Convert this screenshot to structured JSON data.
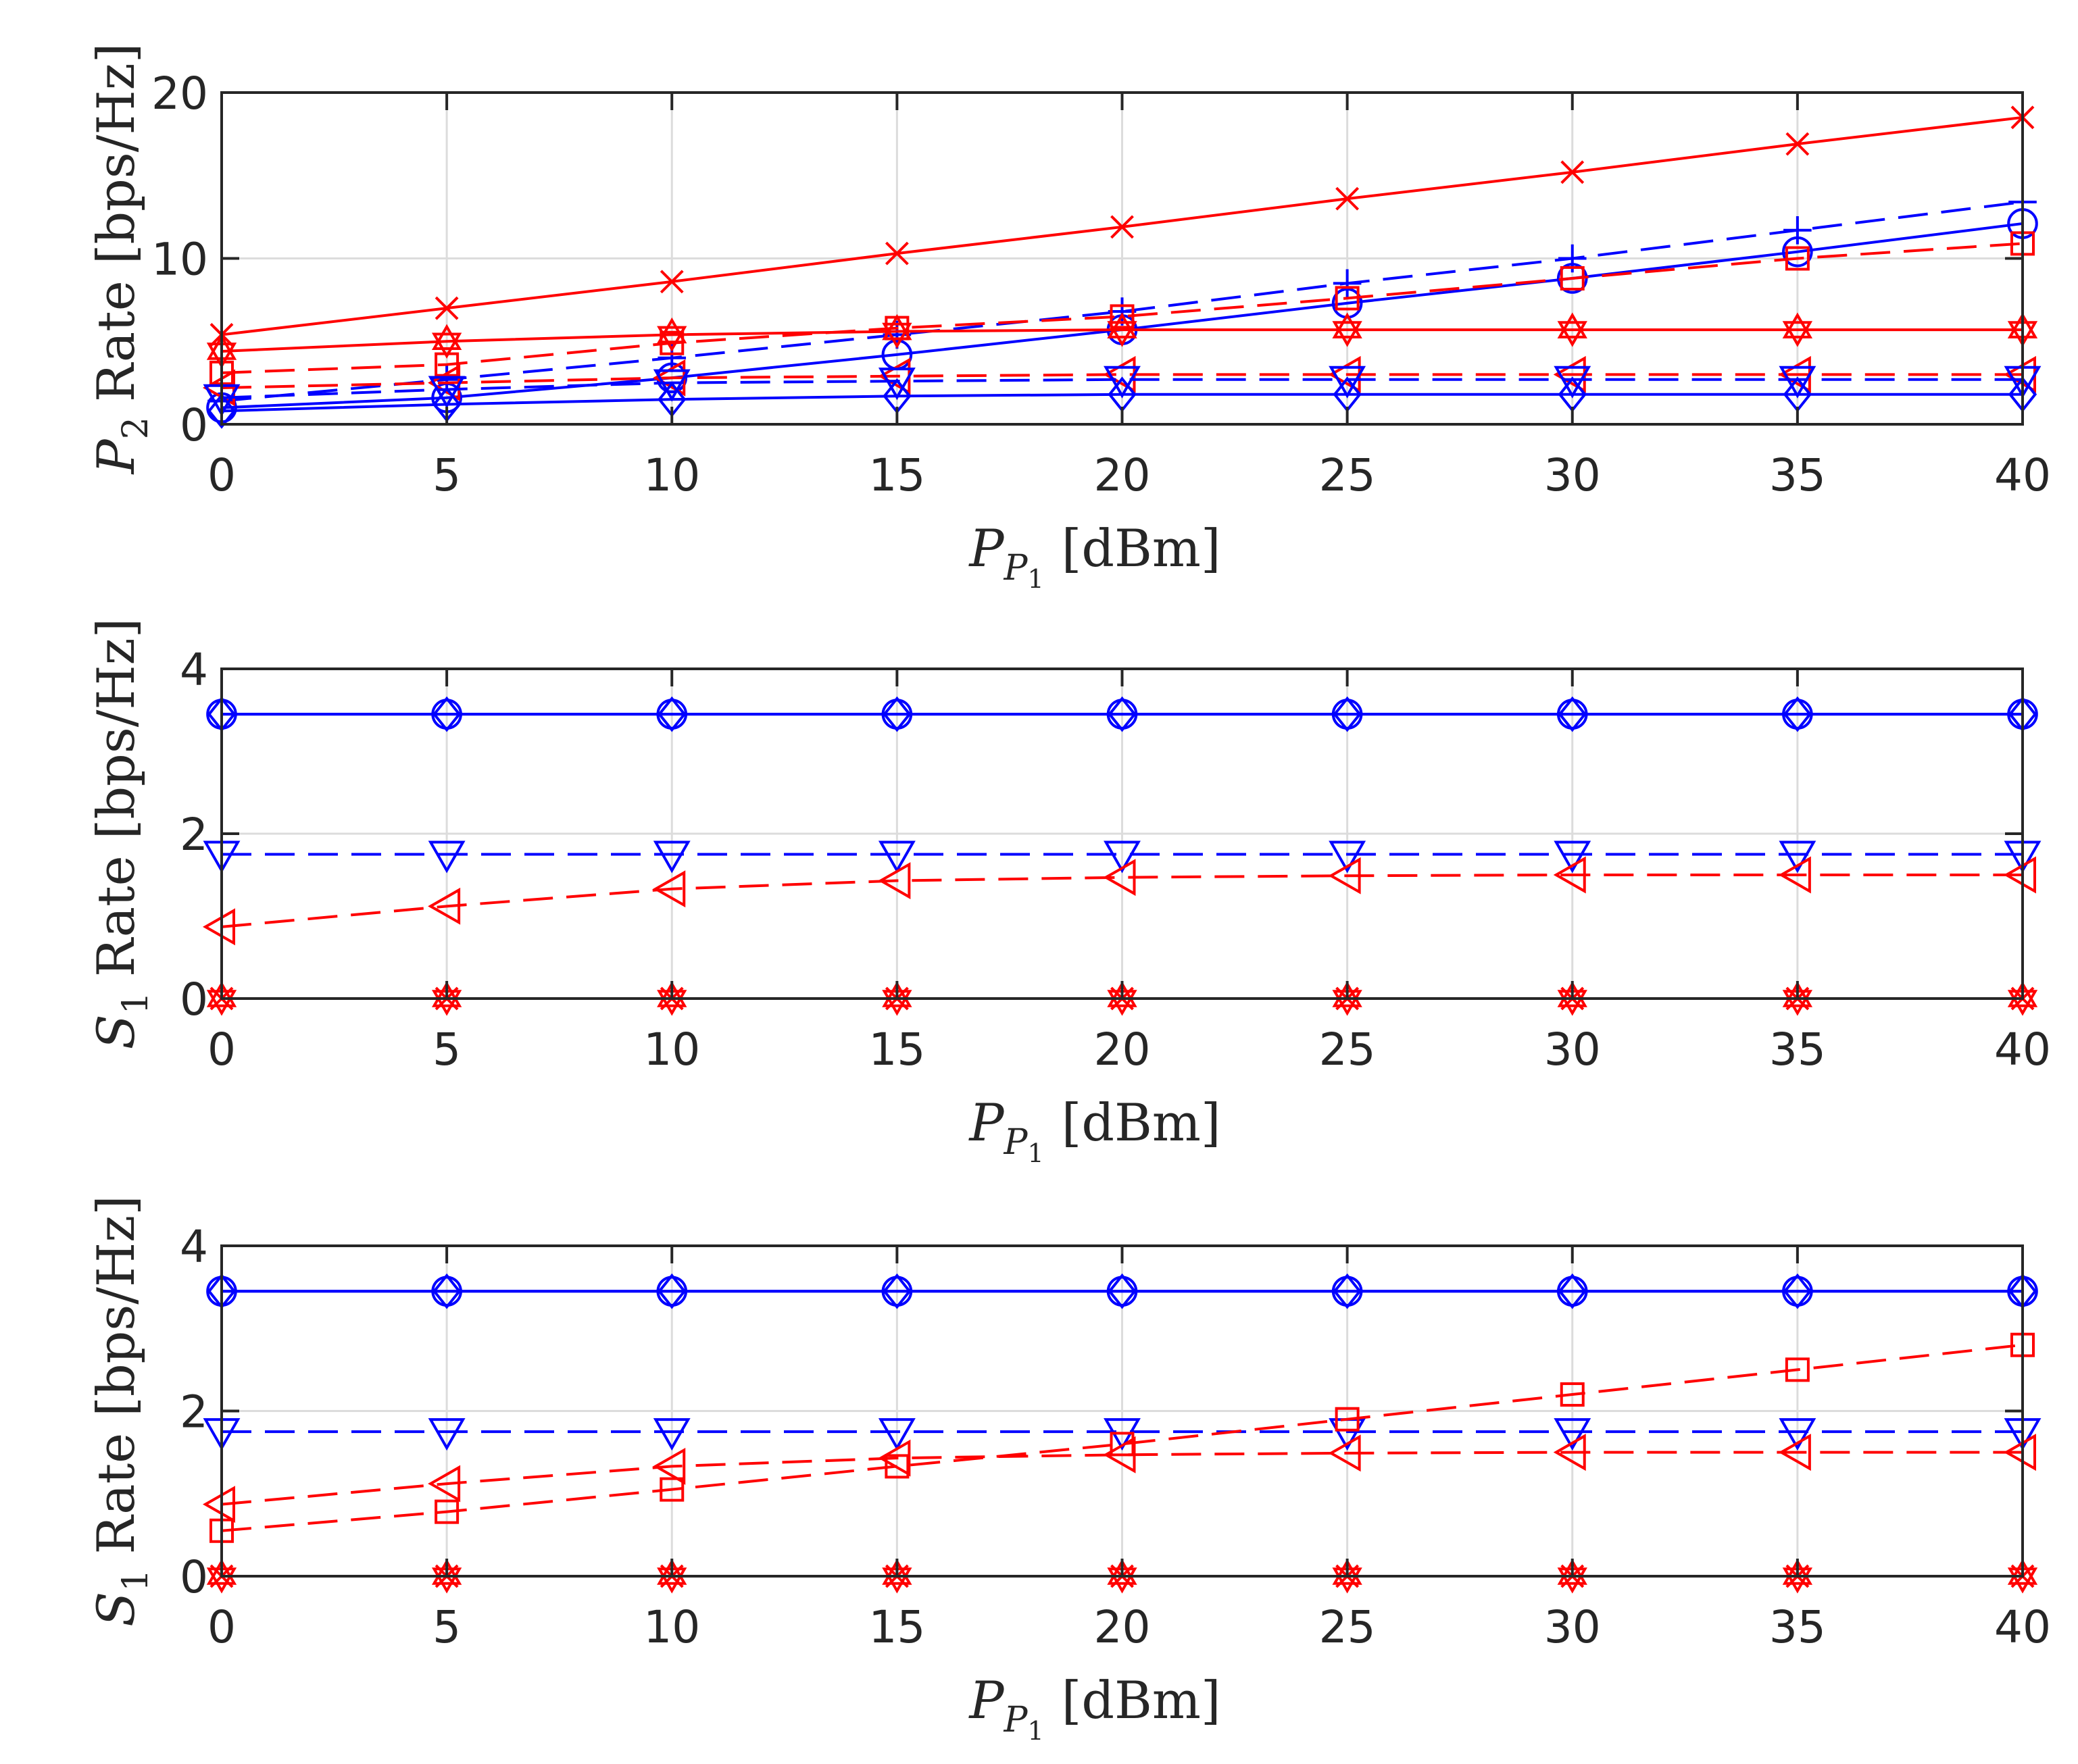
{
  "colors": {
    "blue": "#0000ff",
    "red": "#ff0000",
    "axis": "#262626",
    "grid": "#dcdcdc"
  },
  "chart_data": [
    {
      "type": "line",
      "xlabel": {
        "var": "P",
        "sub": "P",
        "subsub": "1",
        "unit": "[dBm]"
      },
      "ylabel": {
        "var": "P",
        "sub": "2",
        "text": "Rate [bps/Hz]"
      },
      "x": [
        0,
        5,
        10,
        15,
        20,
        25,
        30,
        35,
        40
      ],
      "xticks": [
        "0",
        "5",
        "10",
        "15",
        "20",
        "25",
        "30",
        "35",
        "40"
      ],
      "ylim": [
        0,
        20
      ],
      "yticks": [
        "0",
        "10",
        "20"
      ],
      "grid": true,
      "series": [
        {
          "color": "#ff0000",
          "dash": "solid",
          "marker": "x",
          "values": [
            5.4,
            7.0,
            8.6,
            10.3,
            11.9,
            13.6,
            15.2,
            16.9,
            18.5
          ]
        },
        {
          "color": "#0000ff",
          "dash": "dashed",
          "marker": "plus",
          "values": [
            1.4,
            2.7,
            4.0,
            5.4,
            6.8,
            8.5,
            10.0,
            11.7,
            13.4
          ]
        },
        {
          "color": "#0000ff",
          "dash": "solid",
          "marker": "circle",
          "values": [
            1.0,
            1.6,
            2.8,
            4.2,
            5.7,
            7.3,
            8.8,
            10.4,
            12.1
          ]
        },
        {
          "color": "#ff0000",
          "dash": "dashed",
          "marker": "square",
          "values": [
            3.1,
            3.6,
            4.9,
            5.8,
            6.5,
            7.6,
            8.8,
            10.0,
            10.9
          ]
        },
        {
          "color": "#ff0000",
          "dash": "solid",
          "marker": "hexagram",
          "values": [
            4.4,
            5.0,
            5.4,
            5.6,
            5.7,
            5.7,
            5.7,
            5.7,
            5.7
          ]
        },
        {
          "color": "#ff0000",
          "dash": "dashed",
          "marker": "triangle-left",
          "values": [
            2.2,
            2.5,
            2.8,
            2.9,
            3.0,
            3.0,
            3.0,
            3.0,
            3.0
          ]
        },
        {
          "color": "#0000ff",
          "dash": "dashed",
          "marker": "triangle-down",
          "values": [
            1.6,
            2.1,
            2.5,
            2.6,
            2.7,
            2.7,
            2.7,
            2.7,
            2.7
          ]
        },
        {
          "color": "#0000ff",
          "dash": "solid",
          "marker": "diamond",
          "values": [
            0.8,
            1.2,
            1.5,
            1.7,
            1.8,
            1.8,
            1.8,
            1.8,
            1.8
          ]
        }
      ]
    },
    {
      "type": "line",
      "xlabel": {
        "var": "P",
        "sub": "P",
        "subsub": "1",
        "unit": "[dBm]"
      },
      "ylabel": {
        "var": "S",
        "sub": "1",
        "text": "Rate [bps/Hz]"
      },
      "x": [
        0,
        5,
        10,
        15,
        20,
        25,
        30,
        35,
        40
      ],
      "xticks": [
        "0",
        "5",
        "10",
        "15",
        "20",
        "25",
        "30",
        "35",
        "40"
      ],
      "ylim": [
        0,
        4
      ],
      "yticks": [
        "0",
        "2",
        "4"
      ],
      "grid": true,
      "series": [
        {
          "color": "#0000ff",
          "dash": "solid",
          "marker": "circle",
          "values": [
            3.45,
            3.45,
            3.45,
            3.45,
            3.45,
            3.45,
            3.45,
            3.45,
            3.45
          ]
        },
        {
          "color": "#0000ff",
          "dash": "solid",
          "marker": "diamond",
          "values": [
            3.45,
            3.45,
            3.45,
            3.45,
            3.45,
            3.45,
            3.45,
            3.45,
            3.45
          ]
        },
        {
          "color": "#0000ff",
          "dash": "dashed",
          "marker": "triangle-down",
          "values": [
            1.75,
            1.75,
            1.75,
            1.75,
            1.75,
            1.75,
            1.75,
            1.75,
            1.75
          ]
        },
        {
          "color": "#ff0000",
          "dash": "dashed",
          "marker": "triangle-left",
          "values": [
            0.87,
            1.12,
            1.33,
            1.43,
            1.47,
            1.49,
            1.5,
            1.5,
            1.5
          ]
        },
        {
          "color": "#ff0000",
          "dash": "solid",
          "marker": "x",
          "values": [
            0,
            0,
            0,
            0,
            0,
            0,
            0,
            0,
            0
          ]
        },
        {
          "color": "#ff0000",
          "dash": "solid",
          "marker": "hexagram",
          "values": [
            0,
            0,
            0,
            0,
            0,
            0,
            0,
            0,
            0
          ]
        }
      ]
    },
    {
      "type": "line",
      "xlabel": {
        "var": "P",
        "sub": "P",
        "subsub": "1",
        "unit": "[dBm]"
      },
      "ylabel": {
        "var": "S",
        "sub": "1",
        "text": "Rate [bps/Hz]"
      },
      "x": [
        0,
        5,
        10,
        15,
        20,
        25,
        30,
        35,
        40
      ],
      "xticks": [
        "0",
        "5",
        "10",
        "15",
        "20",
        "25",
        "30",
        "35",
        "40"
      ],
      "ylim": [
        0,
        4
      ],
      "yticks": [
        "0",
        "2",
        "4"
      ],
      "grid": true,
      "series": [
        {
          "color": "#0000ff",
          "dash": "solid",
          "marker": "circle",
          "values": [
            3.45,
            3.45,
            3.45,
            3.45,
            3.45,
            3.45,
            3.45,
            3.45,
            3.45
          ]
        },
        {
          "color": "#0000ff",
          "dash": "solid",
          "marker": "diamond",
          "values": [
            3.45,
            3.45,
            3.45,
            3.45,
            3.45,
            3.45,
            3.45,
            3.45,
            3.45
          ]
        },
        {
          "color": "#0000ff",
          "dash": "dashed",
          "marker": "triangle-down",
          "values": [
            1.75,
            1.75,
            1.75,
            1.75,
            1.75,
            1.75,
            1.75,
            1.75,
            1.75
          ]
        },
        {
          "color": "#ff0000",
          "dash": "dashed",
          "marker": "triangle-left",
          "values": [
            0.87,
            1.12,
            1.33,
            1.43,
            1.47,
            1.49,
            1.5,
            1.5,
            1.5
          ]
        },
        {
          "color": "#ff0000",
          "dash": "dashed",
          "marker": "square",
          "values": [
            0.55,
            0.78,
            1.05,
            1.33,
            1.6,
            1.9,
            2.2,
            2.5,
            2.8
          ]
        },
        {
          "color": "#ff0000",
          "dash": "solid",
          "marker": "x",
          "values": [
            0,
            0,
            0,
            0,
            0,
            0,
            0,
            0,
            0
          ]
        },
        {
          "color": "#ff0000",
          "dash": "solid",
          "marker": "hexagram",
          "values": [
            0,
            0,
            0,
            0,
            0,
            0,
            0,
            0,
            0
          ]
        }
      ]
    }
  ]
}
